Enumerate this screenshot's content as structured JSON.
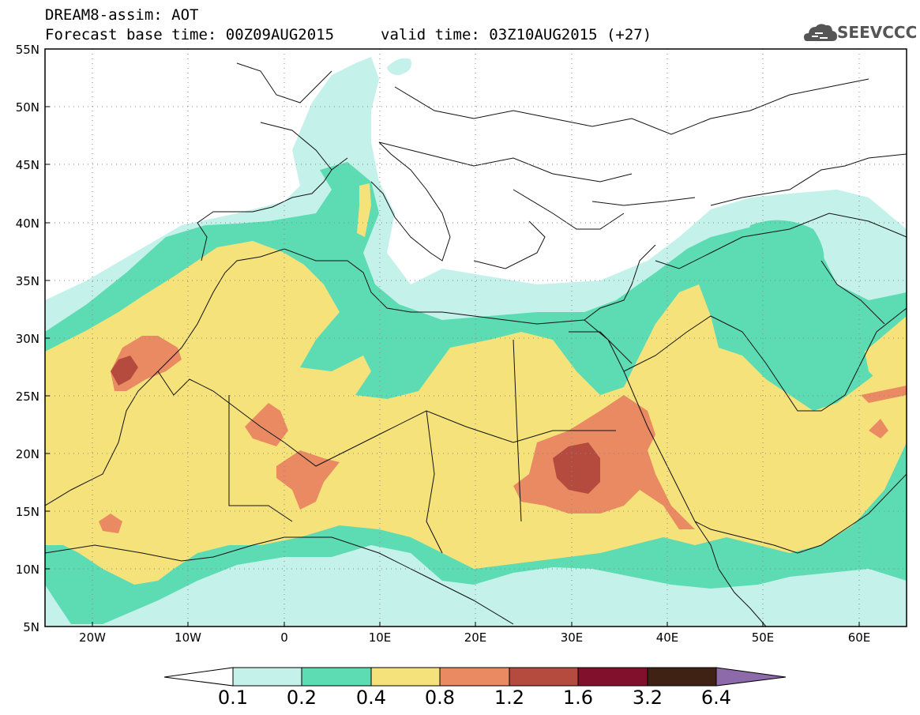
{
  "header": {
    "title": "DREAM8-assim: AOT",
    "base_time": "Forecast base time: 00Z09AUG2015",
    "valid_time": "valid time: 03Z10AUG2015 (+27)"
  },
  "logo": {
    "text": "SEEVCCC",
    "icon": "cloud-icon"
  },
  "map": {
    "lon_range": [
      -25,
      65
    ],
    "lat_range": [
      5,
      55
    ],
    "lat_labels": [
      "55N",
      "50N",
      "45N",
      "40N",
      "35N",
      "30N",
      "25N",
      "20N",
      "15N",
      "10N",
      "5N"
    ],
    "lon_labels": [
      "20W",
      "10W",
      "0",
      "10E",
      "20E",
      "30E",
      "40E",
      "50E",
      "60E"
    ]
  },
  "colorbar": {
    "levels": [
      "0.1",
      "0.2",
      "0.4",
      "0.8",
      "1.2",
      "1.6",
      "3.2",
      "6.4"
    ],
    "colors": [
      "#c4f1ea",
      "#5ddcb4",
      "#f6e27a",
      "#e98a63",
      "#b54a3f",
      "#80102c",
      "#3f2214",
      "#8d6aa9"
    ],
    "extend": "both"
  }
}
